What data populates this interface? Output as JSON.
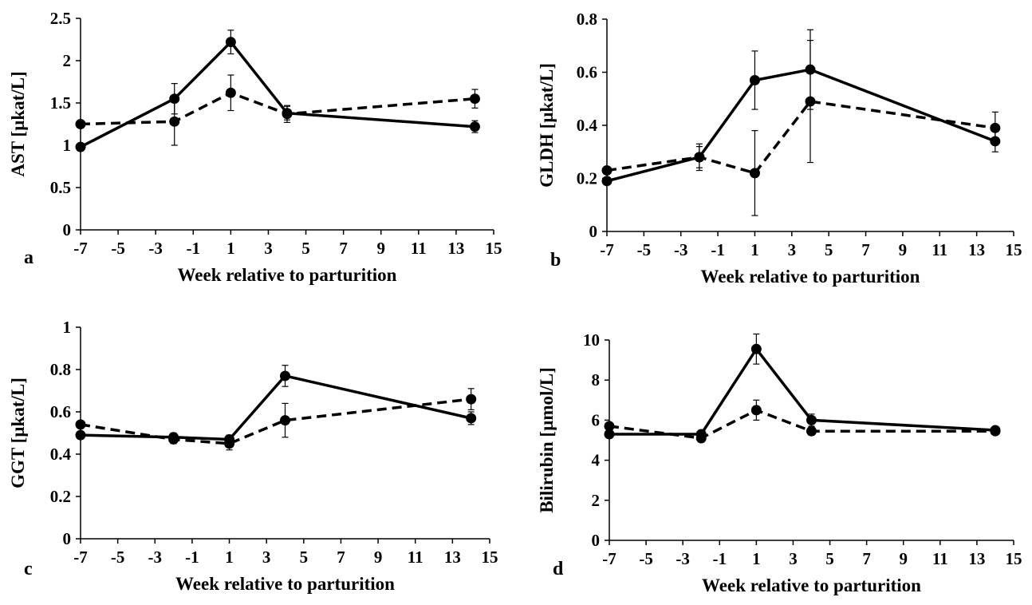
{
  "chart_data": [
    {
      "type": "line",
      "panel": "a",
      "xlabel": "Week relative to parturition",
      "ylabel": "AST [µkat/L]",
      "xlim": [
        -7,
        15
      ],
      "xticks": [
        -7,
        -5,
        -3,
        -1,
        1,
        3,
        5,
        7,
        9,
        11,
        13,
        15
      ],
      "ylim": [
        0,
        2.5
      ],
      "yticks": [
        0,
        0.5,
        1,
        1.5,
        2,
        2.5
      ],
      "grid": false,
      "series": [
        {
          "style": "solid",
          "x": [
            -7,
            -2,
            1,
            4,
            14
          ],
          "y": [
            0.98,
            1.55,
            2.22,
            1.38,
            1.22
          ],
          "err": [
            0.0,
            0.18,
            0.14,
            0.08,
            0.07
          ]
        },
        {
          "style": "dashed",
          "x": [
            -7,
            -2,
            1,
            4,
            14
          ],
          "y": [
            1.25,
            1.28,
            1.62,
            1.37,
            1.55
          ],
          "err": [
            0.0,
            0.28,
            0.21,
            0.1,
            0.11
          ]
        }
      ]
    },
    {
      "type": "line",
      "panel": "b",
      "xlabel": "Week relative to parturition",
      "ylabel": "GLDH [µkat/L]",
      "xlim": [
        -7,
        15
      ],
      "xticks": [
        -7,
        -5,
        -3,
        -1,
        1,
        3,
        5,
        7,
        9,
        11,
        13,
        15
      ],
      "ylim": [
        0,
        0.8
      ],
      "yticks": [
        0,
        0.2,
        0.4,
        0.6,
        0.8
      ],
      "grid": false,
      "series": [
        {
          "style": "solid",
          "x": [
            -7,
            -2,
            1,
            4,
            14
          ],
          "y": [
            0.19,
            0.28,
            0.57,
            0.61,
            0.34
          ],
          "err": [
            0.0,
            0.04,
            0.11,
            0.15,
            0.04
          ]
        },
        {
          "style": "dashed",
          "x": [
            -7,
            -2,
            1,
            4,
            14
          ],
          "y": [
            0.23,
            0.28,
            0.22,
            0.49,
            0.39
          ],
          "err": [
            0.0,
            0.05,
            0.16,
            0.23,
            0.06
          ]
        }
      ]
    },
    {
      "type": "line",
      "panel": "c",
      "xlabel": "Week relative to parturition",
      "ylabel": "GGT [µkat/L]",
      "xlim": [
        -7,
        15
      ],
      "xticks": [
        -7,
        -5,
        -3,
        -1,
        1,
        3,
        5,
        7,
        9,
        11,
        13,
        15
      ],
      "ylim": [
        0,
        1
      ],
      "yticks": [
        0,
        0.2,
        0.4,
        0.6,
        0.8,
        1
      ],
      "grid": false,
      "series": [
        {
          "style": "solid",
          "x": [
            -7,
            -2,
            1,
            4,
            14
          ],
          "y": [
            0.49,
            0.48,
            0.47,
            0.77,
            0.57
          ],
          "err": [
            0.0,
            0.02,
            0.02,
            0.05,
            0.03
          ]
        },
        {
          "style": "dashed",
          "x": [
            -7,
            -2,
            1,
            4,
            14
          ],
          "y": [
            0.54,
            0.47,
            0.45,
            0.56,
            0.66
          ],
          "err": [
            0.0,
            0.02,
            0.03,
            0.08,
            0.05
          ]
        }
      ]
    },
    {
      "type": "line",
      "panel": "d",
      "xlabel": "Week relative to parturition",
      "ylabel": "Bilirubin [µmol/L]",
      "xlim": [
        -7,
        15
      ],
      "xticks": [
        -7,
        -5,
        -3,
        -1,
        1,
        3,
        5,
        7,
        9,
        11,
        13,
        15
      ],
      "ylim": [
        0,
        10
      ],
      "yticks": [
        0,
        2,
        4,
        6,
        8,
        10
      ],
      "grid": false,
      "series": [
        {
          "style": "solid",
          "x": [
            -7,
            -2,
            1,
            4,
            14
          ],
          "y": [
            5.3,
            5.3,
            9.55,
            6.0,
            5.5
          ],
          "err": [
            0.0,
            0.0,
            0.75,
            0.3,
            0.0
          ]
        },
        {
          "style": "dashed",
          "x": [
            -7,
            -2,
            1,
            4,
            14
          ],
          "y": [
            5.7,
            5.1,
            6.5,
            5.45,
            5.45
          ],
          "err": [
            0.0,
            0.0,
            0.5,
            0.2,
            0.0
          ]
        }
      ]
    }
  ]
}
